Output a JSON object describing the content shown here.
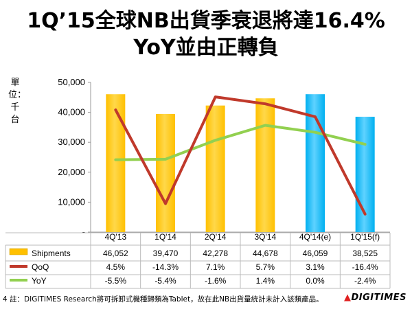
{
  "title_line1": "1Q’15全球NB出貨季衰退將達16.4%",
  "title_line2": "YoY並由正轉負",
  "unit_label": "單位：千台",
  "footnote": "註：DIGITIMES Research將可拆卸式機種歸類為Tablet，故在此NB出貨量統計未計入該類產品。",
  "page_number": "4",
  "brand": "DIGITIMES",
  "colors": {
    "bar_actual": "#FFC000",
    "bar_forecast": "#00B0F0",
    "qoq_line": "#C0392B",
    "yoy_line": "#92D050"
  },
  "chart_data": {
    "type": "bar",
    "categories": [
      "4Q'13",
      "1Q'14",
      "2Q'14",
      "3Q'14",
      "4Q'14(e)",
      "1Q'15(f)"
    ],
    "y_tick_labels": [
      "-",
      "10,000",
      "20,000",
      "30,000",
      "40,000",
      "50,000"
    ],
    "ylim": [
      0,
      50000
    ],
    "series": [
      {
        "name": "Shipments",
        "values": [
          46052,
          39470,
          42278,
          44678,
          46059,
          38525
        ],
        "labels": [
          "46,052",
          "39,470",
          "42,278",
          "44,678",
          "46,059",
          "38,525"
        ]
      },
      {
        "name": "QoQ",
        "values": [
          4.5,
          -14.3,
          7.1,
          5.7,
          3.1,
          -16.4
        ],
        "labels": [
          "4.5%",
          "-14.3%",
          "7.1%",
          "5.7%",
          "3.1%",
          "-16.4%"
        ]
      },
      {
        "name": "YoY",
        "values": [
          -5.5,
          -5.4,
          -1.6,
          1.4,
          0.0,
          -2.4
        ],
        "labels": [
          "-5.5%",
          "-5.4%",
          "-1.6%",
          "1.4%",
          "0.0%",
          "-2.4%"
        ]
      }
    ],
    "forecast_from_index": 4,
    "table_below": true
  }
}
